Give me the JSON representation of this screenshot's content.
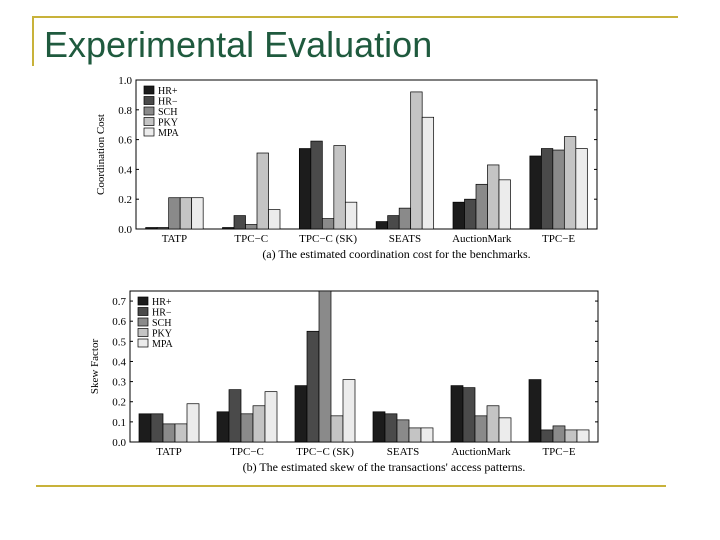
{
  "slide": {
    "title_part1": "Experimental",
    "title_part2": "Evaluation"
  },
  "colors": {
    "frame": "#c8b23a",
    "title": "#1f5a3e",
    "series": [
      "#1c1c1c",
      "#4a4a4a",
      "#8a8a8a",
      "#c4c4c4",
      "#ececec"
    ]
  },
  "chart_data": [
    {
      "type": "bar",
      "categories": [
        "TATP",
        "TPC−C",
        "TPC−C (SK)",
        "SEATS",
        "AuctionMark",
        "TPC−E"
      ],
      "series": [
        {
          "name": "HR+",
          "values": [
            0.01,
            0.01,
            0.54,
            0.05,
            0.18,
            0.49
          ]
        },
        {
          "name": "HR−",
          "values": [
            0.01,
            0.09,
            0.59,
            0.09,
            0.2,
            0.54
          ]
        },
        {
          "name": "SCH",
          "values": [
            0.21,
            0.03,
            0.07,
            0.14,
            0.3,
            0.53
          ]
        },
        {
          "name": "PKY",
          "values": [
            0.21,
            0.51,
            0.56,
            0.92,
            0.43,
            0.62
          ]
        },
        {
          "name": "MPA",
          "values": [
            0.21,
            0.13,
            0.18,
            0.75,
            0.33,
            0.54
          ]
        }
      ],
      "title": "",
      "caption": "(a) The estimated coordination cost for the benchmarks.",
      "xlabel": "",
      "ylabel": "Coordination Cost",
      "ylim": [
        0,
        1.0
      ],
      "yticks": [
        "0.0",
        "0.2",
        "0.4",
        "0.6",
        "0.8",
        "1.0"
      ],
      "legend": "top-left",
      "grid": false
    },
    {
      "type": "bar",
      "categories": [
        "TATP",
        "TPC−C",
        "TPC−C (SK)",
        "SEATS",
        "AuctionMark",
        "TPC−E"
      ],
      "series": [
        {
          "name": "HR+",
          "values": [
            0.14,
            0.15,
            0.28,
            0.15,
            0.28,
            0.31
          ]
        },
        {
          "name": "HR−",
          "values": [
            0.14,
            0.26,
            0.55,
            0.14,
            0.27,
            0.06
          ]
        },
        {
          "name": "SCH",
          "values": [
            0.09,
            0.14,
            0.76,
            0.11,
            0.13,
            0.08
          ]
        },
        {
          "name": "PKY",
          "values": [
            0.09,
            0.18,
            0.13,
            0.07,
            0.18,
            0.06
          ]
        },
        {
          "name": "MPA",
          "values": [
            0.19,
            0.25,
            0.31,
            0.07,
            0.12,
            0.06
          ]
        }
      ],
      "title": "",
      "caption": "(b) The estimated skew of the transactions' access patterns.",
      "xlabel": "",
      "ylabel": "Skew Factor",
      "ylim": [
        0,
        0.75
      ],
      "yticks": [
        "0.0",
        "0.1",
        "0.2",
        "0.3",
        "0.4",
        "0.5",
        "0.6",
        "0.7"
      ],
      "legend": "top-left",
      "grid": false
    }
  ]
}
